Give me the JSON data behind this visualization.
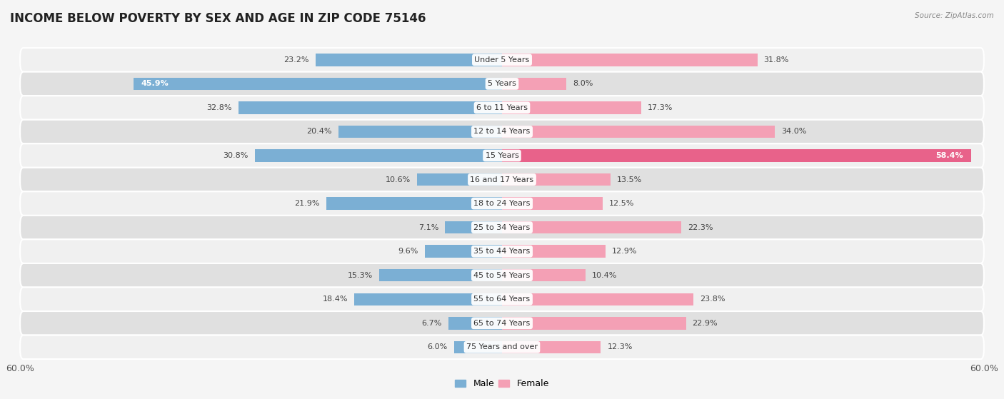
{
  "title": "INCOME BELOW POVERTY BY SEX AND AGE IN ZIP CODE 75146",
  "source": "Source: ZipAtlas.com",
  "categories": [
    "Under 5 Years",
    "5 Years",
    "6 to 11 Years",
    "12 to 14 Years",
    "15 Years",
    "16 and 17 Years",
    "18 to 24 Years",
    "25 to 34 Years",
    "35 to 44 Years",
    "45 to 54 Years",
    "55 to 64 Years",
    "65 to 74 Years",
    "75 Years and over"
  ],
  "male_values": [
    23.2,
    45.9,
    32.8,
    20.4,
    30.8,
    10.6,
    21.9,
    7.1,
    9.6,
    15.3,
    18.4,
    6.7,
    6.0
  ],
  "female_values": [
    31.8,
    8.0,
    17.3,
    34.0,
    58.4,
    13.5,
    12.5,
    22.3,
    12.9,
    10.4,
    23.8,
    22.9,
    12.3
  ],
  "male_color": "#7bafd4",
  "female_color_normal": "#f4a0b5",
  "female_color_highlight": "#e8628a",
  "female_highlight_index": 4,
  "bar_height": 0.52,
  "xlim": 60.0,
  "axis_label_left": "60.0%",
  "axis_label_right": "60.0%",
  "background_color": "#f5f5f5",
  "row_bg_light": "#f0f0f0",
  "row_bg_dark": "#e0e0e0",
  "legend_male": "Male",
  "legend_female": "Female",
  "title_fontsize": 12,
  "source_fontsize": 7.5,
  "label_fontsize": 9,
  "category_fontsize": 8,
  "value_fontsize": 8
}
